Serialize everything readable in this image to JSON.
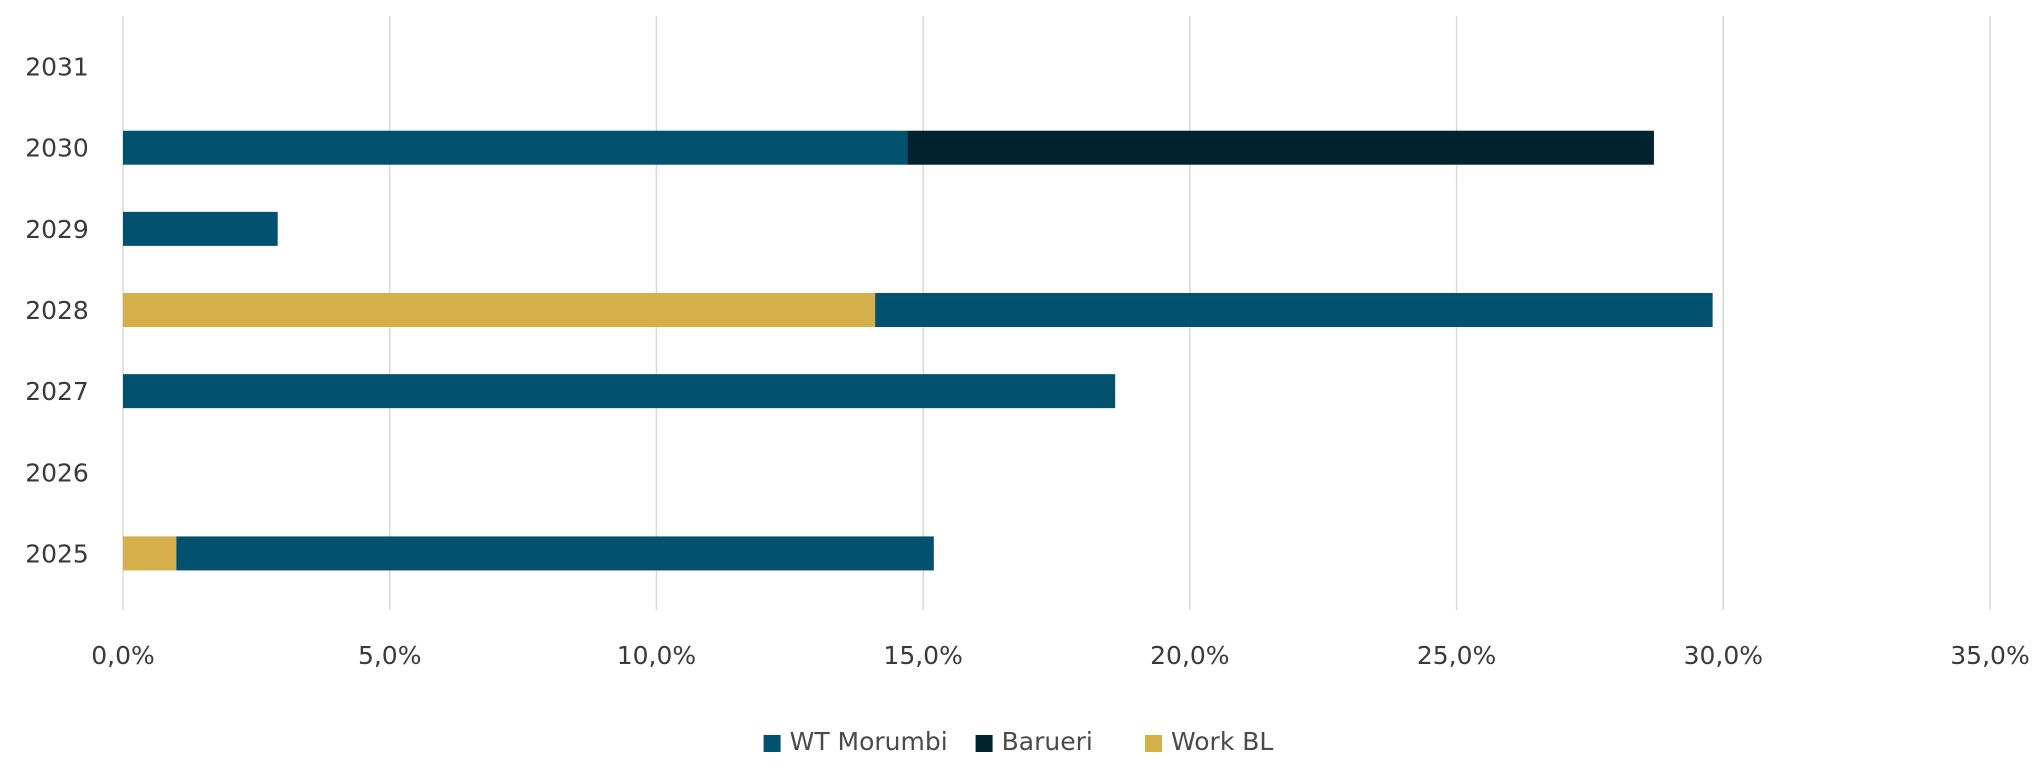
{
  "chart_data": {
    "type": "bar",
    "orientation": "horizontal",
    "stacked": true,
    "title": "",
    "xlabel": "",
    "ylabel": "",
    "categories": [
      "2025",
      "2026",
      "2027",
      "2028",
      "2029",
      "2030",
      "2031"
    ],
    "x_ticks": [
      "0,0%",
      "5,0%",
      "10,0%",
      "15,0%",
      "20,0%",
      "25,0%",
      "30,0%",
      "35,0%"
    ],
    "xlim": [
      0,
      35
    ],
    "grid": "vertical",
    "legend_position": "bottom",
    "segments_order": [
      [
        "Work BL",
        "WT Morumbi"
      ],
      [],
      [
        "WT Morumbi"
      ],
      [
        "Work BL",
        "WT Morumbi"
      ],
      [
        "WT Morumbi"
      ],
      [
        "WT Morumbi",
        "Barueri"
      ],
      []
    ],
    "series": [
      {
        "name": "WT Morumbi",
        "color": "#02526f",
        "values": [
          14.2,
          0,
          18.6,
          15.7,
          2.9,
          14.7,
          0
        ]
      },
      {
        "name": "Barueri",
        "color": "#00232f",
        "values": [
          0,
          0,
          0,
          0,
          0,
          14.0,
          0
        ]
      },
      {
        "name": "Work BL",
        "color": "#d4af4a",
        "values": [
          1.0,
          0,
          0,
          14.1,
          0,
          0,
          0
        ]
      }
    ]
  }
}
